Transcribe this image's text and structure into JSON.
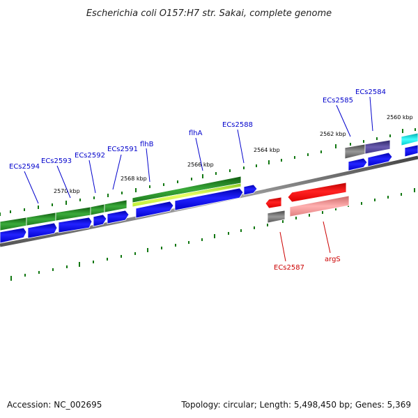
{
  "title": "Escherichia coli O157:H7 str. Sakai, complete genome",
  "footer": {
    "accession": "Accession: NC_002695",
    "summary": "Topology: circular; Length: 5,498,450 bp; Genes: 5,369"
  },
  "scale_labels": {
    "k2560": "2560 kbp",
    "k2562": "2562 kbp",
    "k2564": "2564 kbp",
    "k2566": "2566 kbp",
    "k2568": "2568 kbp",
    "k2570": "2570 kbp"
  },
  "genes": {
    "ecs2584": "ECs2584",
    "ecs2585": "ECs2585",
    "ecs2587": "ECs2587",
    "args": "argS",
    "ecs2588": "ECs2588",
    "flha": "flhA",
    "flhb": "flhB",
    "ecs2591": "ECs2591",
    "ecs2592": "ECs2592",
    "ecs2593": "ECs2593",
    "ecs2594": "ECs2594"
  },
  "colors": {
    "backbone": "#777777",
    "forward_gene": "#0000dd",
    "reverse_gene": "#ee0000",
    "cog_green": "#2f9a2f",
    "cog_purple": "#4b3f8c",
    "cog_cyan": "#00d8d8",
    "cog_gray": "#666666",
    "cog_pink": "#ee8a8a",
    "tick": "#117711",
    "label_blue": "#0000cc",
    "label_red": "#cc0000"
  }
}
